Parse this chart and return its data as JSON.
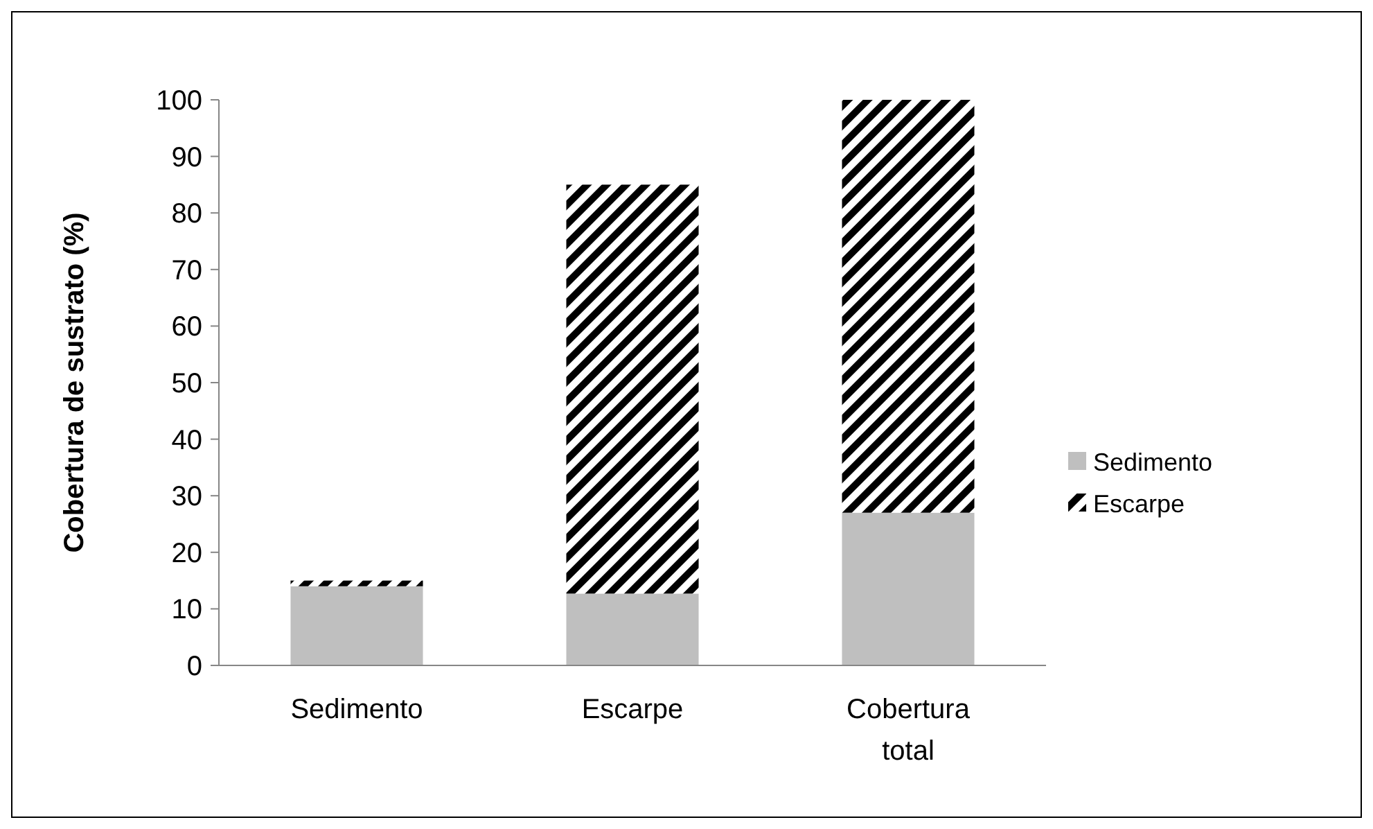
{
  "chart_data": {
    "type": "bar",
    "stacked": true,
    "ylabel": "Cobertura de sustrato (%)",
    "categories": [
      "Sedimento",
      "Escarpe",
      "Cobertura total"
    ],
    "series": [
      {
        "name": "Sedimento",
        "color": "#bfbfbf",
        "values": [
          14,
          12.7,
          27
        ]
      },
      {
        "name": "Escarpe",
        "color": "#000000",
        "values": [
          1,
          72.3,
          73
        ]
      }
    ],
    "ylim": [
      0,
      100
    ],
    "yticks": [
      0,
      10,
      20,
      30,
      40,
      50,
      60,
      70,
      80,
      90,
      100
    ],
    "grid": false,
    "legend": "right"
  }
}
